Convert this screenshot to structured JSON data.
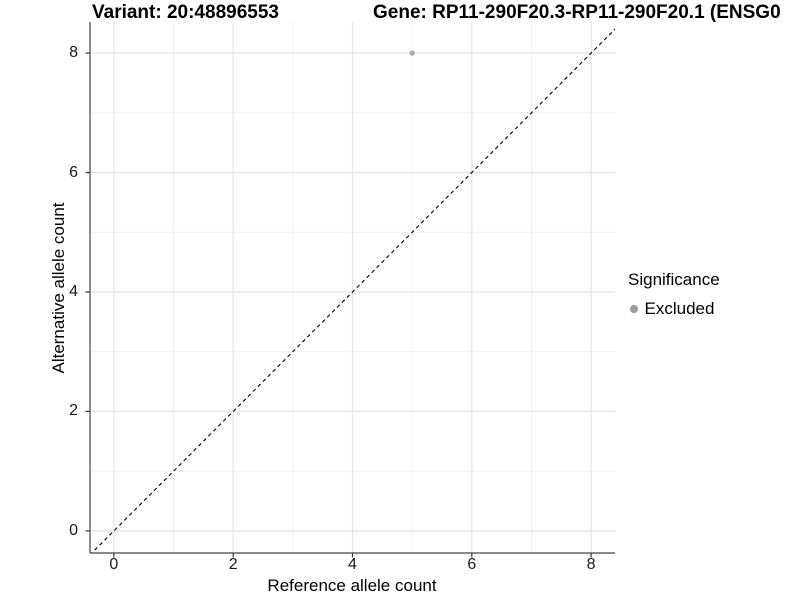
{
  "chart_data": {
    "type": "scatter",
    "titles": {
      "variant": "Variant: 20:48896553",
      "gene": "Gene: RP11-290F20.3-RP11-290F20.1 (ENSG0"
    },
    "xlabel": "Reference allele count",
    "ylabel": "Alternative allele count",
    "xticks": [
      0,
      2,
      4,
      6,
      8
    ],
    "yticks": [
      0,
      2,
      4,
      6,
      8
    ],
    "minor_xticks": [
      1,
      3,
      5,
      7
    ],
    "minor_yticks": [
      1,
      3,
      5,
      7
    ],
    "xlim": [
      -0.4,
      8.4
    ],
    "ylim": [
      -0.37,
      8.52
    ],
    "grid": true,
    "identity_line": {
      "slope": 1,
      "intercept": 0,
      "style": "dashed",
      "color": "#000000"
    },
    "series": [
      {
        "name": "Excluded",
        "color": "#acacac",
        "points": [
          {
            "x": 5,
            "y": 8
          }
        ]
      }
    ],
    "legend": {
      "position": "right",
      "title": "Significance",
      "items": [
        {
          "label": "Excluded",
          "color": "#9e9e9e"
        }
      ]
    },
    "colors": {
      "grid_major": "#e3e3e3",
      "grid_minor": "#efefef",
      "axis_line": "#444444",
      "tick_mark": "#333333",
      "background": "#ffffff"
    }
  }
}
